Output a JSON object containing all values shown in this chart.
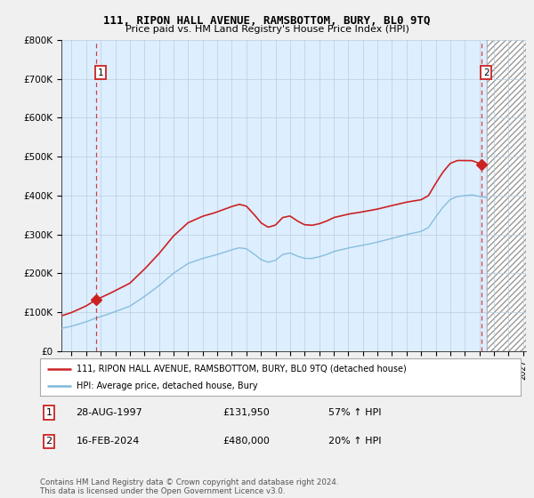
{
  "title": "111, RIPON HALL AVENUE, RAMSBOTTOM, BURY, BL0 9TQ",
  "subtitle": "Price paid vs. HM Land Registry's House Price Index (HPI)",
  "ylabel_values": [
    "£0",
    "£100K",
    "£200K",
    "£300K",
    "£400K",
    "£500K",
    "£600K",
    "£700K",
    "£800K"
  ],
  "yticks": [
    0,
    100000,
    200000,
    300000,
    400000,
    500000,
    600000,
    700000,
    800000
  ],
  "ylim": [
    0,
    800000
  ],
  "xlim_start": 1995.3,
  "xlim_end": 2027.2,
  "hpi_color": "#7db9d9",
  "price_color": "#cc2222",
  "plot_bg_color": "#ddeeff",
  "hatch_bg_color": "#e8e8e8",
  "background_color": "#f0f0f0",
  "grid_color": "#bbccdd",
  "sale1_x": 1997.66,
  "sale1_y": 131950,
  "sale2_x": 2024.12,
  "sale2_y": 480000,
  "legend_label1": "111, RIPON HALL AVENUE, RAMSBOTTOM, BURY, BL0 9TQ (detached house)",
  "legend_label2": "HPI: Average price, detached house, Bury",
  "table_row1": [
    "1",
    "28-AUG-1997",
    "£131,950",
    "57% ↑ HPI"
  ],
  "table_row2": [
    "2",
    "16-FEB-2024",
    "£480,000",
    "20% ↑ HPI"
  ],
  "footnote": "Contains HM Land Registry data © Crown copyright and database right 2024.\nThis data is licensed under the Open Government Licence v3.0."
}
